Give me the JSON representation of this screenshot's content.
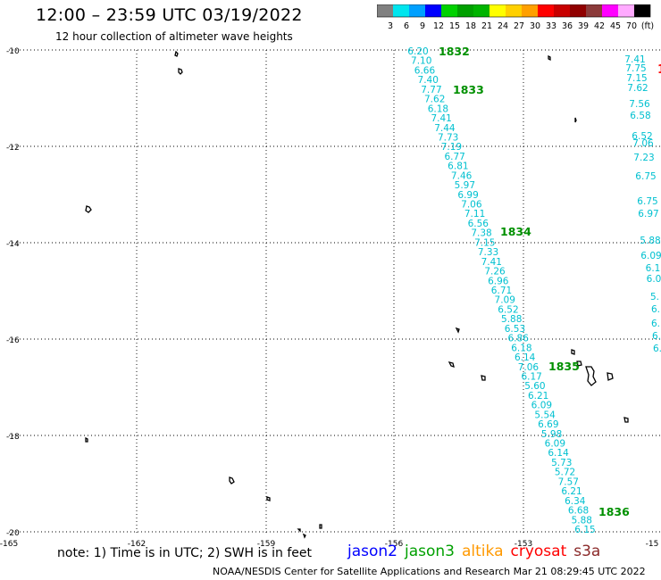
{
  "title": "12:00 – 23:59 UTC 03/19/2022",
  "subtitle": "12 hour collection of altimeter wave heights",
  "colorbar": {
    "labels": [
      "3",
      "6",
      "9",
      "12",
      "15",
      "18",
      "21",
      "24",
      "27",
      "30",
      "33",
      "36",
      "39",
      "42",
      "45",
      "70",
      "(ft)"
    ],
    "colors": [
      "#808080",
      "#00e5ee",
      "#00a0ff",
      "#0000ff",
      "#00d200",
      "#00a000",
      "#00b400",
      "#ffff00",
      "#ffd000",
      "#ffa000",
      "#ff0000",
      "#c80000",
      "#900000",
      "#8b3a3a",
      "#ff00ff",
      "#ffaaff",
      "#000000"
    ]
  },
  "axes": {
    "lat_labels": [
      "-10",
      "-12",
      "-14",
      "-16",
      "-18",
      "-20"
    ],
    "lon_labels": [
      "-165",
      "-162",
      "-159",
      "-156",
      "-153",
      "-15"
    ]
  },
  "track": {
    "color": "#00c0d0",
    "values": [
      "6.20",
      "7.10",
      "6.66",
      "7.40",
      "7.77",
      "7.62",
      "6.18",
      "7.41",
      "7.44",
      "7.73",
      "7.19",
      "6.77",
      "6.81",
      "7.46",
      "5.97",
      "6.99",
      "7.06",
      "7.11",
      "6.56",
      "7.38",
      "7.15",
      "7.33",
      "7.41",
      "7.26",
      "6.96",
      "6.71",
      "7.09",
      "6.52",
      "5.88",
      "6.53",
      "6.86",
      "6.18",
      "6.14",
      "7.06",
      "6.17",
      "5.60",
      "6.21",
      "6.09",
      "5.54",
      "6.69",
      "5.98",
      "6.09",
      "6.14",
      "5.73",
      "5.72",
      "7.57",
      "6.21",
      "6.34",
      "6.68",
      "5.88",
      "6.15"
    ]
  },
  "right_track": {
    "values": [
      "7.41",
      "7.75",
      "7.15",
      "7.62",
      "7.56",
      "6.58",
      "6.52",
      "7.06",
      "7.23",
      "6.75",
      "6.75",
      "6.97",
      "5.88",
      "6.09",
      "6.1",
      "6.0",
      "5.",
      "6.",
      "6.",
      "6.",
      "6."
    ]
  },
  "time_labels": {
    "color": "#009000",
    "values": [
      "1832",
      "1833",
      "1834",
      "1835",
      "1836"
    ]
  },
  "red_edge_label": "1",
  "note": "note:  1) Time is in UTC;  2) SWH is in feet",
  "satellites": [
    {
      "name": "jason2",
      "color": "#0000ff"
    },
    {
      "name": "jason3",
      "color": "#00a000"
    },
    {
      "name": "altika",
      "color": "#ff9900"
    },
    {
      "name": "cryosat",
      "color": "#ff0000"
    },
    {
      "name": "s3a",
      "color": "#8b2a2a"
    }
  ],
  "credit": "NOAA/NESDIS Center for Satellite Applications and Research    Mar 21 08:29:45 UTC 2022"
}
